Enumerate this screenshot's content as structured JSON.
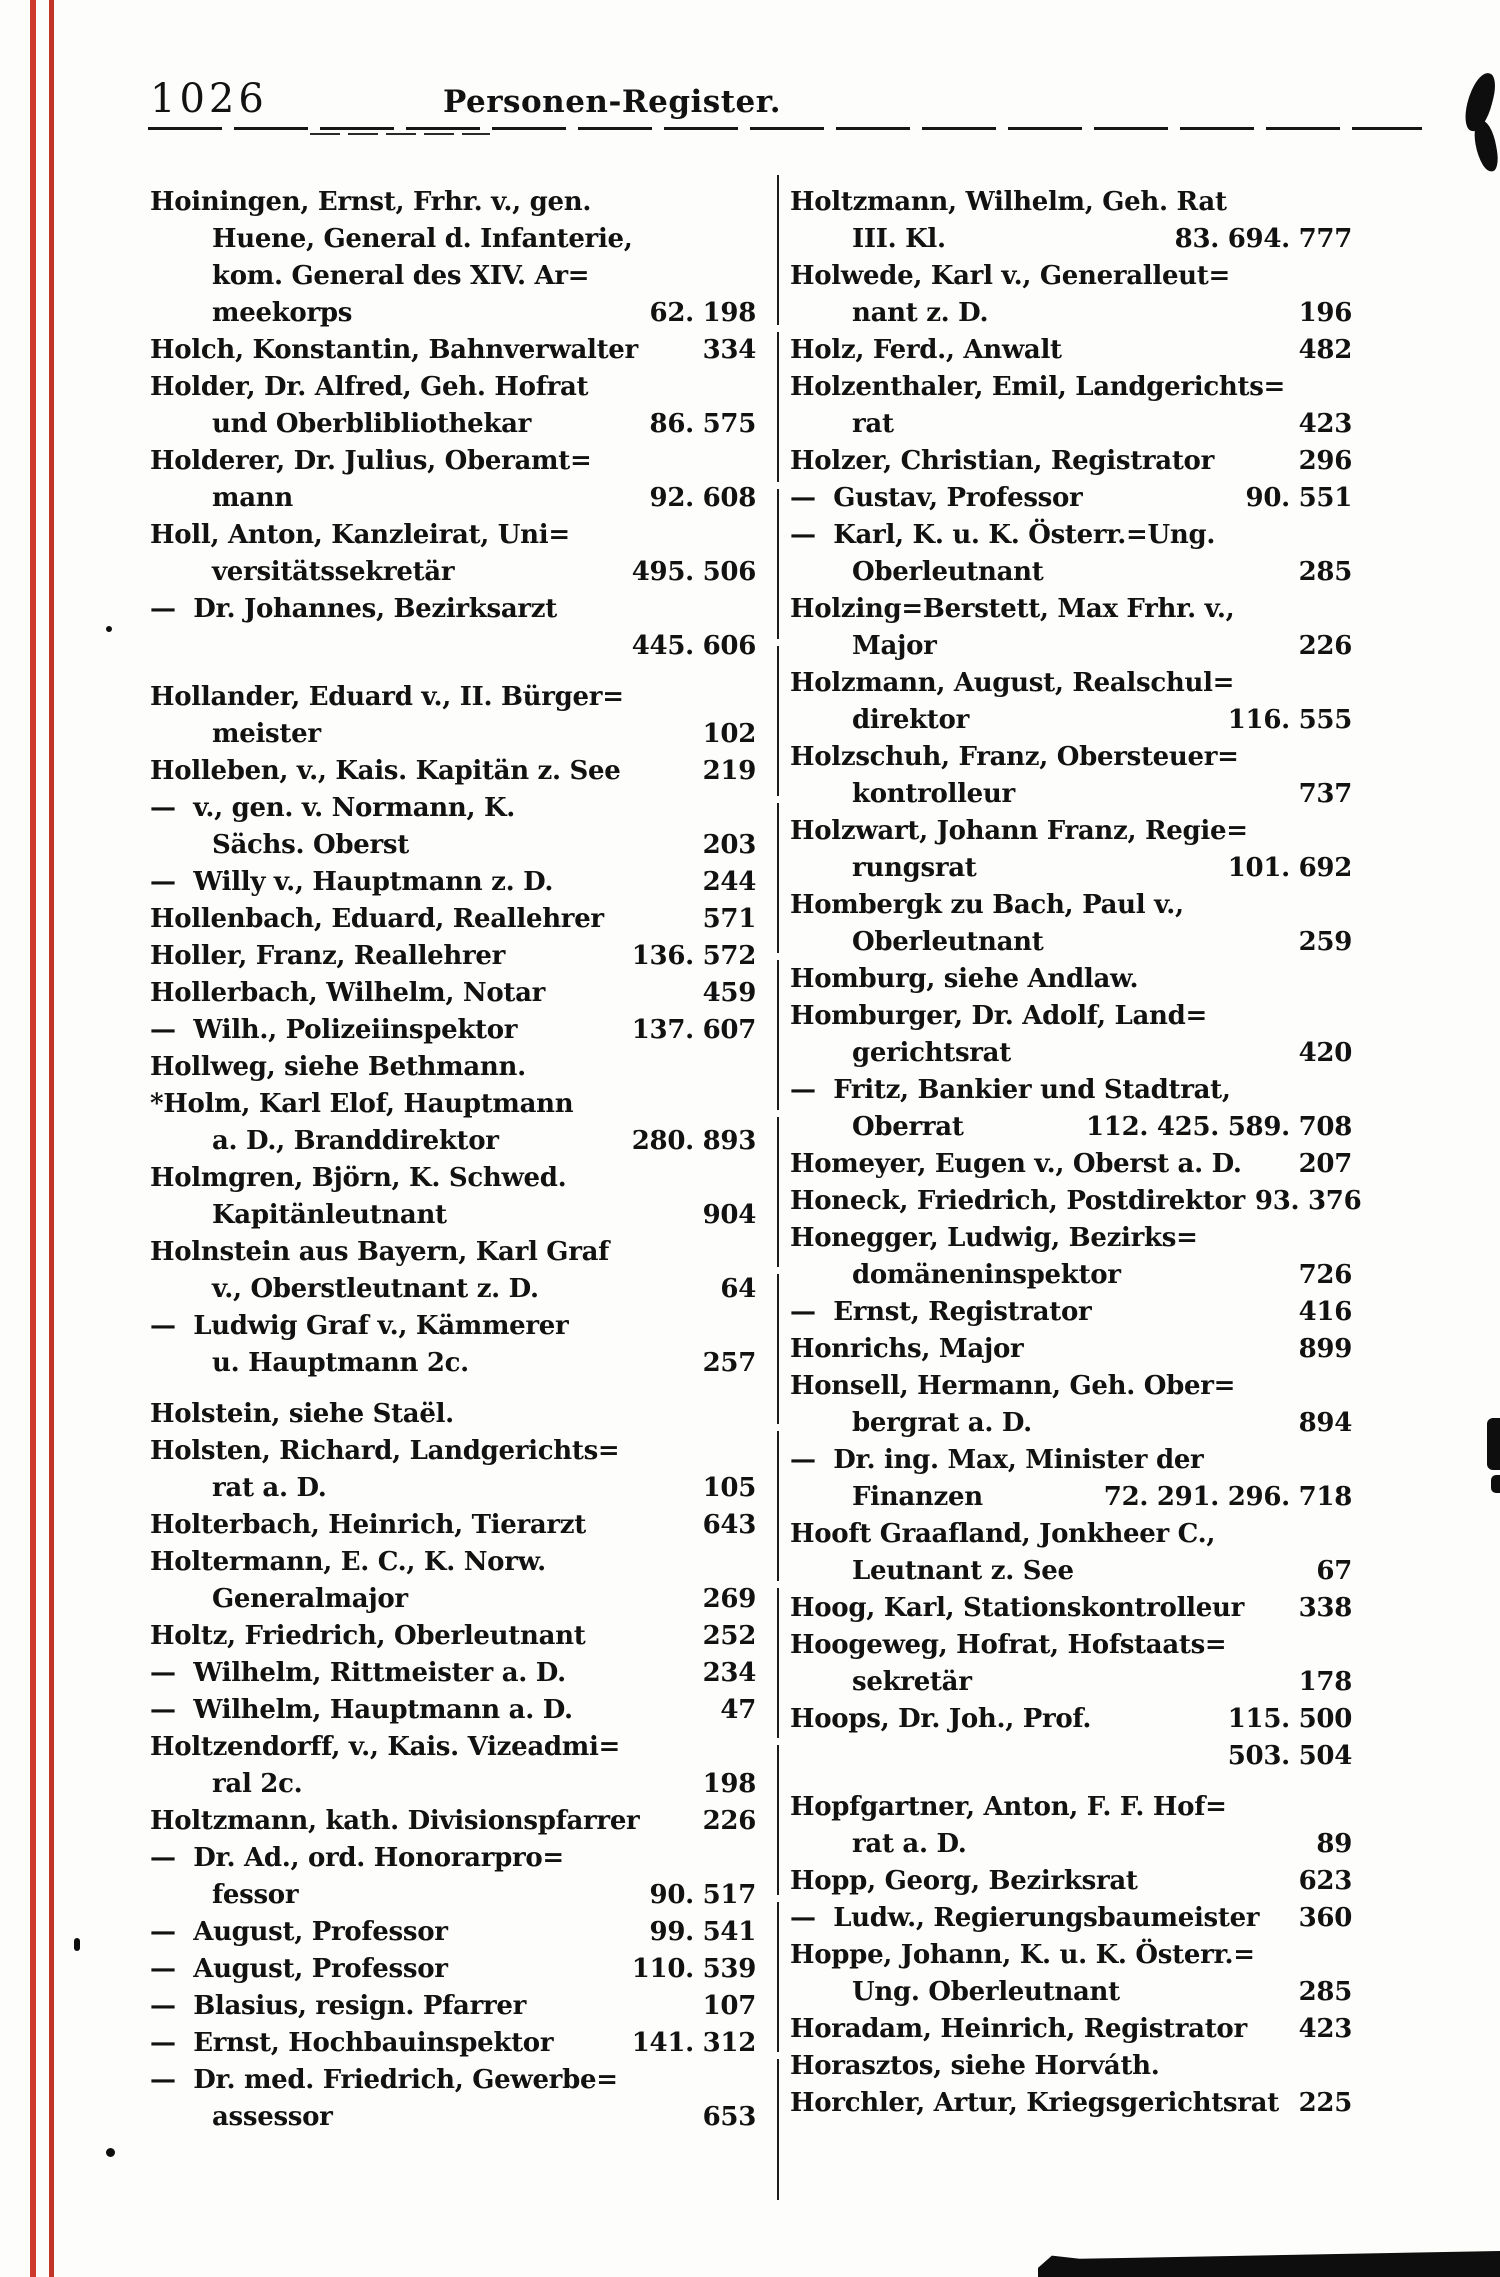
{
  "page": {
    "number": "1026",
    "title": "Personen-Register."
  },
  "colors": {
    "ink": "#121212",
    "paper": "#fdfdfb",
    "registration_line_red": "#ce3a2d"
  },
  "left_column": {
    "entries": [
      {
        "lines": [
          {
            "indent": 0,
            "text": "Hoiningen, Ernst, Frhr. v., gen.",
            "pages": ""
          },
          {
            "indent": 1,
            "text": "Huene, General d. Infanterie,",
            "pages": ""
          },
          {
            "indent": 1,
            "text": "kom. General des XIV. Ar=",
            "pages": ""
          },
          {
            "indent": 1,
            "text": "meekorps",
            "pages": "62. 198"
          }
        ]
      },
      {
        "lines": [
          {
            "indent": 0,
            "text": "Holch, Konstantin, Bahnverwalter",
            "pages": "334"
          }
        ]
      },
      {
        "lines": [
          {
            "indent": 0,
            "text": "Holder, Dr. Alfred, Geh. Hofrat",
            "pages": ""
          },
          {
            "indent": 1,
            "text": "und Oberblibliothekar",
            "pages": "86. 575"
          }
        ]
      },
      {
        "lines": [
          {
            "indent": 0,
            "text": "Holderer, Dr. Julius, Oberamt=",
            "pages": ""
          },
          {
            "indent": 1,
            "text": "mann",
            "pages": "92. 608"
          }
        ]
      },
      {
        "lines": [
          {
            "indent": 0,
            "text": "Holl, Anton, Kanzleirat, Uni=",
            "pages": ""
          },
          {
            "indent": 1,
            "text": "versitätssekretär",
            "pages": "495. 506"
          }
        ]
      },
      {
        "lines": [
          {
            "indent": 0,
            "text": "—  Dr. Johannes, Bezirksarzt",
            "pages": ""
          },
          {
            "indent": 1,
            "text": "",
            "pages": "445. 606"
          }
        ]
      },
      {
        "gap_before": true,
        "lines": [
          {
            "indent": 0,
            "text": "Hollander, Eduard v., II. Bürger=",
            "pages": ""
          },
          {
            "indent": 1,
            "text": "meister",
            "pages": "102"
          }
        ]
      },
      {
        "lines": [
          {
            "indent": 0,
            "text": "Holleben, v., Kais. Kapitän z. See",
            "pages": "219"
          }
        ]
      },
      {
        "lines": [
          {
            "indent": 0,
            "text": "—  v., gen. v. Normann, K.",
            "pages": ""
          },
          {
            "indent": 1,
            "text": "Sächs. Oberst",
            "pages": "203"
          }
        ]
      },
      {
        "lines": [
          {
            "indent": 0,
            "text": "—  Willy v., Hauptmann z. D.",
            "pages": "244"
          }
        ]
      },
      {
        "lines": [
          {
            "indent": 0,
            "text": "Hollenbach, Eduard, Reallehrer",
            "pages": "571"
          }
        ]
      },
      {
        "lines": [
          {
            "indent": 0,
            "text": "Holler, Franz, Reallehrer",
            "pages": "136. 572"
          }
        ]
      },
      {
        "lines": [
          {
            "indent": 0,
            "text": "Hollerbach, Wilhelm, Notar",
            "pages": "459"
          }
        ]
      },
      {
        "lines": [
          {
            "indent": 0,
            "text": "—  Wilh., Polizeiinspektor",
            "pages": "137. 607"
          }
        ]
      },
      {
        "lines": [
          {
            "indent": 0,
            "text": "Hollweg, siehe Bethmann.",
            "pages": ""
          }
        ]
      },
      {
        "lines": [
          {
            "indent": 0,
            "text": "*Holm, Karl Elof, Hauptmann",
            "pages": ""
          },
          {
            "indent": 1,
            "text": "a. D., Branddirektor",
            "pages": "280. 893"
          }
        ]
      },
      {
        "lines": [
          {
            "indent": 0,
            "text": "Holmgren, Björn, K. Schwed.",
            "pages": ""
          },
          {
            "indent": 1,
            "text": "Kapitänleutnant",
            "pages": "904"
          }
        ]
      },
      {
        "lines": [
          {
            "indent": 0,
            "text": "Holnstein aus Bayern, Karl Graf",
            "pages": ""
          },
          {
            "indent": 1,
            "text": "v., Oberstleutnant z. D.",
            "pages": "64"
          }
        ]
      },
      {
        "lines": [
          {
            "indent": 0,
            "text": "—  Ludwig Graf v., Kämmerer",
            "pages": ""
          },
          {
            "indent": 1,
            "text": "u. Hauptmann 2c.",
            "pages": "257"
          }
        ]
      },
      {
        "gap_before": true,
        "lines": [
          {
            "indent": 0,
            "text": "Holstein, siehe Staël.",
            "pages": ""
          }
        ]
      },
      {
        "lines": [
          {
            "indent": 0,
            "text": "Holsten, Richard, Landgerichts=",
            "pages": ""
          },
          {
            "indent": 1,
            "text": "rat a. D.",
            "pages": "105"
          }
        ]
      },
      {
        "lines": [
          {
            "indent": 0,
            "text": "Holterbach, Heinrich, Tierarzt",
            "pages": "643"
          }
        ]
      },
      {
        "lines": [
          {
            "indent": 0,
            "text": "Holtermann, E. C., K. Norw.",
            "pages": ""
          },
          {
            "indent": 1,
            "text": "Generalmajor",
            "pages": "269"
          }
        ]
      },
      {
        "lines": [
          {
            "indent": 0,
            "text": "Holtz, Friedrich, Oberleutnant",
            "pages": "252"
          }
        ]
      },
      {
        "lines": [
          {
            "indent": 0,
            "text": "—  Wilhelm, Rittmeister a. D.",
            "pages": "234"
          }
        ]
      },
      {
        "lines": [
          {
            "indent": 0,
            "text": "—  Wilhelm, Hauptmann a. D.",
            "pages": "47"
          }
        ]
      },
      {
        "lines": [
          {
            "indent": 0,
            "text": "Holtzendorff, v., Kais. Vizeadmi=",
            "pages": ""
          },
          {
            "indent": 1,
            "text": "ral 2c.",
            "pages": "198"
          }
        ]
      },
      {
        "lines": [
          {
            "indent": 0,
            "text": "Holtzmann, kath. Divisionspfarrer",
            "pages": "226"
          }
        ]
      },
      {
        "lines": [
          {
            "indent": 0,
            "text": "—  Dr. Ad., ord. Honorarpro=",
            "pages": ""
          },
          {
            "indent": 1,
            "text": "fessor",
            "pages": "90. 517"
          }
        ]
      },
      {
        "lines": [
          {
            "indent": 0,
            "text": "—  August, Professor",
            "pages": "99. 541"
          }
        ]
      },
      {
        "lines": [
          {
            "indent": 0,
            "text": "—  August, Professor",
            "pages": "110. 539"
          }
        ]
      },
      {
        "lines": [
          {
            "indent": 0,
            "text": "—  Blasius, resign. Pfarrer",
            "pages": "107"
          }
        ]
      },
      {
        "lines": [
          {
            "indent": 0,
            "text": "—  Ernst, Hochbauinspektor",
            "pages": "141. 312"
          }
        ]
      },
      {
        "lines": [
          {
            "indent": 0,
            "text": "—  Dr. med. Friedrich, Gewerbe=",
            "pages": ""
          },
          {
            "indent": 1,
            "text": "assessor",
            "pages": "653"
          }
        ]
      }
    ]
  },
  "right_column": {
    "entries": [
      {
        "lines": [
          {
            "indent": 0,
            "text": "Holtzmann, Wilhelm, Geh. Rat",
            "pages": ""
          },
          {
            "indent": 1,
            "text": "III. Kl.",
            "pages": "83. 694. 777"
          }
        ]
      },
      {
        "lines": [
          {
            "indent": 0,
            "text": "Holwede, Karl v., Generalleut=",
            "pages": ""
          },
          {
            "indent": 1,
            "text": "nant z. D.",
            "pages": "196"
          }
        ]
      },
      {
        "lines": [
          {
            "indent": 0,
            "text": "Holz, Ferd., Anwalt",
            "pages": "482"
          }
        ]
      },
      {
        "lines": [
          {
            "indent": 0,
            "text": "Holzenthaler, Emil, Landgerichts=",
            "pages": ""
          },
          {
            "indent": 1,
            "text": "rat",
            "pages": "423"
          }
        ]
      },
      {
        "lines": [
          {
            "indent": 0,
            "text": "Holzer, Christian, Registrator",
            "pages": "296"
          }
        ]
      },
      {
        "lines": [
          {
            "indent": 0,
            "text": "—  Gustav, Professor",
            "pages": "90. 551"
          }
        ]
      },
      {
        "lines": [
          {
            "indent": 0,
            "text": "—  Karl, K. u. K. Österr.=Ung.",
            "pages": ""
          },
          {
            "indent": 1,
            "text": "Oberleutnant",
            "pages": "285"
          }
        ]
      },
      {
        "lines": [
          {
            "indent": 0,
            "text": "Holzing=Berstett, Max Frhr. v.,",
            "pages": ""
          },
          {
            "indent": 1,
            "text": "Major",
            "pages": "226"
          }
        ]
      },
      {
        "lines": [
          {
            "indent": 0,
            "text": "Holzmann, August, Realschul=",
            "pages": ""
          },
          {
            "indent": 1,
            "text": "direktor",
            "pages": "116. 555"
          }
        ]
      },
      {
        "lines": [
          {
            "indent": 0,
            "text": "Holzschuh, Franz, Obersteuer=",
            "pages": ""
          },
          {
            "indent": 1,
            "text": "kontrolleur",
            "pages": "737"
          }
        ]
      },
      {
        "lines": [
          {
            "indent": 0,
            "text": "Holzwart, Johann Franz, Regie=",
            "pages": ""
          },
          {
            "indent": 1,
            "text": "rungsrat",
            "pages": "101. 692"
          }
        ]
      },
      {
        "lines": [
          {
            "indent": 0,
            "text": "Hombergk zu Bach, Paul v.,",
            "pages": ""
          },
          {
            "indent": 1,
            "text": "Oberleutnant",
            "pages": "259"
          }
        ]
      },
      {
        "lines": [
          {
            "indent": 0,
            "text": "Homburg, siehe Andlaw.",
            "pages": ""
          }
        ]
      },
      {
        "lines": [
          {
            "indent": 0,
            "text": "Homburger, Dr. Adolf, Land=",
            "pages": ""
          },
          {
            "indent": 1,
            "text": "gerichtsrat",
            "pages": "420"
          }
        ]
      },
      {
        "lines": [
          {
            "indent": 0,
            "text": "—  Fritz, Bankier und Stadtrat,",
            "pages": ""
          },
          {
            "indent": 1,
            "text": "Oberrat",
            "pages": "112. 425. 589. 708"
          }
        ]
      },
      {
        "lines": [
          {
            "indent": 0,
            "text": "Homeyer, Eugen v., Oberst a. D.",
            "pages": "207"
          }
        ]
      },
      {
        "lines": [
          {
            "indent": 0,
            "text": "Honeck, Friedrich, Postdirektor",
            "pages": "93. 376"
          }
        ]
      },
      {
        "lines": [
          {
            "indent": 0,
            "text": "Honegger, Ludwig, Bezirks=",
            "pages": ""
          },
          {
            "indent": 1,
            "text": "domäneninspektor",
            "pages": "726"
          }
        ]
      },
      {
        "lines": [
          {
            "indent": 0,
            "text": "—  Ernst, Registrator",
            "pages": "416"
          }
        ]
      },
      {
        "lines": [
          {
            "indent": 0,
            "text": "Honrichs, Major",
            "pages": "899"
          }
        ]
      },
      {
        "lines": [
          {
            "indent": 0,
            "text": "Honsell, Hermann, Geh. Ober=",
            "pages": ""
          },
          {
            "indent": 1,
            "text": "bergrat a. D.",
            "pages": "894"
          }
        ]
      },
      {
        "lines": [
          {
            "indent": 0,
            "text": "—  Dr. ing. Max, Minister der",
            "pages": ""
          },
          {
            "indent": 1,
            "text": "Finanzen",
            "pages": "72. 291. 296. 718"
          }
        ]
      },
      {
        "lines": [
          {
            "indent": 0,
            "text": "Hooft Graafland, Jonkheer C.,",
            "pages": ""
          },
          {
            "indent": 1,
            "text": "Leutnant z. See",
            "pages": "67"
          }
        ]
      },
      {
        "lines": [
          {
            "indent": 0,
            "text": "Hoog, Karl, Stationskontrolleur",
            "pages": "338"
          }
        ]
      },
      {
        "lines": [
          {
            "indent": 0,
            "text": "Hoogeweg, Hofrat, Hofstaats=",
            "pages": ""
          },
          {
            "indent": 1,
            "text": "sekretär",
            "pages": "178"
          }
        ]
      },
      {
        "lines": [
          {
            "indent": 0,
            "text": "Hoops, Dr. Joh., Prof.",
            "pages": "115. 500"
          },
          {
            "indent": 1,
            "text": "",
            "pages": "503. 504"
          }
        ]
      },
      {
        "gap_before": true,
        "lines": [
          {
            "indent": 0,
            "text": "Hopfgartner, Anton, F. F. Hof=",
            "pages": ""
          },
          {
            "indent": 1,
            "text": "rat a. D.",
            "pages": "89"
          }
        ]
      },
      {
        "lines": [
          {
            "indent": 0,
            "text": "Hopp, Georg, Bezirksrat",
            "pages": "623"
          }
        ]
      },
      {
        "lines": [
          {
            "indent": 0,
            "text": "—  Ludw., Regierungsbaumeister",
            "pages": "360"
          }
        ]
      },
      {
        "lines": [
          {
            "indent": 0,
            "text": "Hoppe, Johann, K. u. K. Österr.=",
            "pages": ""
          },
          {
            "indent": 1,
            "text": "Ung. Oberleutnant",
            "pages": "285"
          }
        ]
      },
      {
        "lines": [
          {
            "indent": 0,
            "text": "Horadam, Heinrich, Registrator",
            "pages": "423"
          }
        ]
      },
      {
        "lines": [
          {
            "indent": 0,
            "text": "Horasztos, siehe Horváth.",
            "pages": ""
          }
        ]
      },
      {
        "lines": [
          {
            "indent": 0,
            "text": "Horchler, Artur, Kriegsgerichtsrat",
            "pages": "225"
          }
        ]
      }
    ]
  }
}
